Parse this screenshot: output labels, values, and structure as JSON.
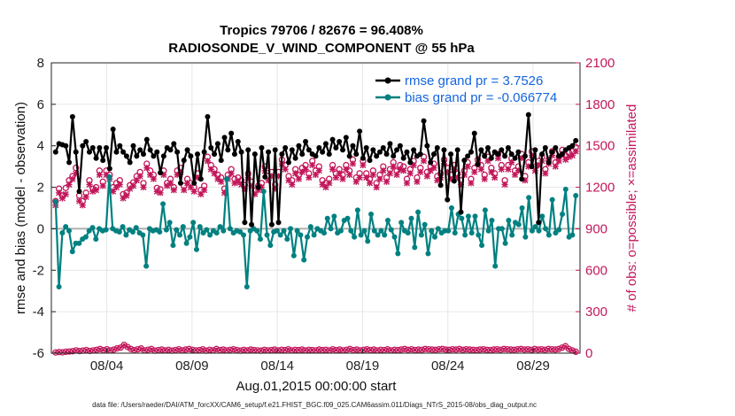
{
  "chart_data": {
    "type": "line",
    "title": "Tropics 79706 / 82676 = 96.408%",
    "subtitle": "RADIOSONDE_V_WIND_COMPONENT @ 55 hPa",
    "xlabel": "Aug.01,2015 00:00:00 start",
    "ylabel": "rmse and bias (model - observation)",
    "ylabel_right": "# of obs: o=possible; ×=assimilated",
    "footer": "data file: /Users/raeder/DAI/ATM_forcXX/CAM6_setup/f.e21.FHIST_BGC.f09_025.CAM6assim.011/Diags_NTrS_2015-08/obs_diag_output.nc",
    "xlim": [
      0.75,
      31.75
    ],
    "ylim": [
      -6,
      8
    ],
    "ylim_right": [
      0,
      2100
    ],
    "yticks": [
      -6,
      -4,
      -2,
      0,
      2,
      4,
      6,
      8
    ],
    "yticks_right": [
      0,
      300,
      600,
      900,
      1200,
      1500,
      1800,
      2100
    ],
    "xtick_values": [
      4,
      9,
      14,
      19,
      24,
      29
    ],
    "xtick_labels": [
      "08/04",
      "08/09",
      "08/14",
      "08/19",
      "08/24",
      "08/29"
    ],
    "zero_line": 0,
    "colors": {
      "rmse": "#000000",
      "bias": "#008080",
      "obs": "#c2185b",
      "legend_text": "#1565e0",
      "zero_line": "#b0b0b0"
    },
    "series": [
      {
        "name": "rmse grand pr = 3.7526",
        "values": [
          3.7,
          4.1,
          4.05,
          4.0,
          3.2,
          5.4,
          3.7,
          1.8,
          4.0,
          4.2,
          3.7,
          3.9,
          3.4,
          3.9,
          3.3,
          3.9,
          2.9,
          4.8,
          3.7,
          4.0,
          3.7,
          3.5,
          3.2,
          4.0,
          3.5,
          3.8,
          3.6,
          4.3,
          3.8,
          3.5,
          3.7,
          2.7,
          3.5,
          3.9,
          3.8,
          4.1,
          3.7,
          2.2,
          3.3,
          3.8,
          3.5,
          2.2,
          3.6,
          2.4,
          3.7,
          5.4,
          3.9,
          3.6,
          4.1,
          3.3,
          4.4,
          3.8,
          4.6,
          3.6,
          4.2,
          3.7,
          0.3,
          3.8,
          0.2,
          3.6,
          2.0,
          3.9,
          2.5,
          3.7,
          0.2,
          3.8,
          0.3,
          3.6,
          3.9,
          3.2,
          3.8,
          3.4,
          4.0,
          3.6,
          4.2,
          3.8,
          3.6,
          3.5,
          3.9,
          3.7,
          4.1,
          3.6,
          4.3,
          3.9,
          4.2,
          3.8,
          4.4,
          3.5,
          4.0,
          3.6,
          4.7,
          3.4,
          3.9,
          3.3,
          3.8,
          3.5,
          3.7,
          3.9,
          3.6,
          4.1,
          3.5,
          3.8,
          4.0,
          3.4,
          3.7,
          3.2,
          3.8,
          3.5,
          3.6,
          5.2,
          4.0,
          3.2,
          3.6,
          3.9,
          2.1,
          3.8,
          1.4,
          3.6,
          2.3,
          3.8,
          0.8,
          3.3,
          3.5,
          3.7,
          4.6,
          3.1,
          3.8,
          3.5,
          3.9,
          3.4,
          3.7,
          3.6,
          3.8,
          3.5,
          3.9,
          3.6,
          3.4,
          3.7,
          2.4,
          3.5,
          5.5,
          3.0,
          3.8,
          0.3,
          3.6,
          3.9,
          3.2,
          3.7,
          3.9,
          3.5,
          3.6,
          3.8,
          3.9,
          4.0,
          4.25
        ]
      },
      {
        "name": "bias grand pr = -0.066774",
        "values": [
          1.3,
          -2.8,
          -0.2,
          0.1,
          -0.1,
          -1.1,
          -0.7,
          -0.7,
          -0.5,
          -0.4,
          -0.1,
          0.05,
          -0.5,
          0.0,
          -0.1,
          -0.05,
          2.5,
          0.0,
          -0.1,
          -0.15,
          0.1,
          -0.3,
          -0.05,
          -0.15,
          0.05,
          -0.2,
          -0.3,
          -1.8,
          0.0,
          -0.1,
          -0.05,
          -0.15,
          1.2,
          -0.05,
          0.3,
          -0.8,
          -0.05,
          -0.3,
          0.1,
          -0.7,
          -0.4,
          0.3,
          -1.0,
          0.1,
          -0.2,
          -0.05,
          -0.3,
          -0.1,
          -0.2,
          0.1,
          -0.1,
          2.4,
          0.0,
          -0.2,
          -0.1,
          -0.15,
          -0.3,
          -2.8,
          -0.1,
          0.0,
          -0.1,
          -0.5,
          1.8,
          -0.3,
          -0.8,
          -0.15,
          -0.1,
          -0.3,
          -0.1,
          -0.5,
          0.0,
          -1.3,
          -0.1,
          -0.3,
          -1.5,
          -0.4,
          0.1,
          -0.3,
          0.0,
          -0.1,
          -0.2,
          0.5,
          0.0,
          0.6,
          -0.2,
          -0.1,
          0.4,
          0.5,
          -0.1,
          -0.4,
          0.9,
          -0.3,
          -0.1,
          -0.6,
          0.7,
          -0.1,
          -0.3,
          -0.1,
          -0.3,
          0.4,
          -0.05,
          -0.4,
          -1.2,
          0.3,
          -0.1,
          -0.2,
          0.5,
          -0.9,
          0.8,
          -0.3,
          0.2,
          -1.2,
          -0.1,
          -0.4,
          0.0,
          -0.2,
          -0.1,
          -0.1,
          1.0,
          -0.2,
          0.7,
          0.5,
          -0.3,
          0.6,
          -0.2,
          0.6,
          -0.3,
          -0.8,
          0.9,
          -0.1,
          0.4,
          -1.8,
          0.0,
          0.0,
          -0.7,
          0.4,
          -0.3,
          0.3,
          0.2,
          1.0,
          -0.4,
          1.5,
          -0.1,
          0.1,
          -0.1,
          0.6,
          0.0,
          -0.3,
          1.4,
          -0.2,
          -0.05,
          0.7,
          1.9,
          -0.4,
          -0.3,
          1.6
        ]
      }
    ],
    "obs_possible": [
      1100,
      1190,
      1140,
      1195,
      1250,
      1280,
      1340,
      1140,
      1100,
      1160,
      1250,
      1190,
      1200,
      1320,
      1240,
      1320,
      1290,
      1200,
      1230,
      1250,
      1150,
      1160,
      1215,
      1235,
      1280,
      1310,
      1230,
      1370,
      1320,
      1290,
      1195,
      1185,
      1320,
      1230,
      1260,
      1200,
      1320,
      1340,
      1210,
      1260,
      1230,
      1200,
      1300,
      1180,
      1210,
      1420,
      1360,
      1330,
      1290,
      1270,
      1190,
      1290,
      1330,
      1260,
      1270,
      1250,
      1215,
      1300,
      1240,
      1175,
      1210,
      1230,
      1350,
      1280,
      1310,
      1220,
      1310,
      1400,
      1360,
      1280,
      1250,
      1330,
      1290,
      1340,
      1360,
      1300,
      1390,
      1320,
      1350,
      1250,
      1230,
      1260,
      1360,
      1300,
      1330,
      1290,
      1360,
      1320,
      1400,
      1270,
      1300,
      1390,
      1300,
      1260,
      1320,
      1230,
      1290,
      1350,
      1270,
      1330,
      1380,
      1320,
      1360,
      1350,
      1260,
      1330,
      1390,
      1270,
      1340,
      1420,
      1310,
      1350,
      1370,
      1280,
      1300,
      1400,
      1340,
      1290,
      1360,
      1300,
      1250,
      1320,
      1380,
      1260,
      1340,
      1400,
      1360,
      1290,
      1420,
      1340,
      1300,
      1440,
      1360,
      1250,
      1360,
      1410,
      1320,
      1350,
      1440,
      1280,
      1380,
      1460,
      1350,
      1390,
      1420,
      1330,
      1400,
      1460,
      1380,
      1420,
      1470,
      1430,
      1450,
      1460,
      1490
    ],
    "obs_assimilated": [
      1070,
      1160,
      1120,
      1150,
      1220,
      1260,
      1300,
      1100,
      1070,
      1130,
      1220,
      1170,
      1180,
      1290,
      1210,
      1290,
      1260,
      1170,
      1200,
      1220,
      1120,
      1140,
      1190,
      1210,
      1250,
      1280,
      1200,
      1340,
      1290,
      1260,
      1170,
      1160,
      1290,
      1210,
      1230,
      1180,
      1290,
      1310,
      1180,
      1230,
      1200,
      1170,
      1270,
      1150,
      1180,
      1390,
      1330,
      1300,
      1260,
      1240,
      1160,
      1260,
      1300,
      1230,
      1240,
      1220,
      1190,
      1270,
      1210,
      1150,
      1180,
      1200,
      1320,
      1250,
      1280,
      1190,
      1280,
      1370,
      1330,
      1250,
      1220,
      1300,
      1260,
      1310,
      1330,
      1270,
      1360,
      1290,
      1320,
      1220,
      1200,
      1230,
      1330,
      1270,
      1300,
      1260,
      1330,
      1290,
      1370,
      1240,
      1270,
      1360,
      1270,
      1230,
      1290,
      1200,
      1260,
      1320,
      1240,
      1300,
      1350,
      1290,
      1330,
      1320,
      1230,
      1300,
      1360,
      1240,
      1310,
      1390,
      1280,
      1320,
      1340,
      1250,
      1270,
      1370,
      1310,
      1260,
      1330,
      1270,
      1220,
      1290,
      1350,
      1230,
      1310,
      1370,
      1330,
      1260,
      1390,
      1310,
      1270,
      1410,
      1330,
      1220,
      1330,
      1380,
      1290,
      1320,
      1410,
      1250,
      1350,
      1430,
      1320,
      1360,
      1390,
      1300,
      1370,
      1430,
      1350,
      1390,
      1440,
      1400,
      1420,
      1430,
      1460
    ],
    "obs_count_bottom": [
      5,
      8,
      6,
      10,
      12,
      14,
      20,
      15,
      18,
      22,
      16,
      20,
      24,
      30,
      22,
      28,
      20,
      26,
      35,
      40,
      60,
      45,
      30,
      22,
      28,
      34,
      20,
      25,
      30,
      18,
      22,
      26,
      20,
      24,
      18,
      22,
      28,
      20,
      26,
      30,
      24,
      20,
      22,
      28,
      18,
      24,
      20,
      30,
      22,
      26,
      20,
      24,
      28,
      22,
      18,
      24,
      20,
      26,
      22,
      20,
      18,
      24,
      20,
      22,
      26,
      20,
      24,
      22,
      28,
      20,
      24,
      22,
      26,
      20,
      24,
      22,
      20,
      26,
      22,
      24,
      20,
      28,
      22,
      26,
      20,
      24,
      30,
      22,
      26,
      20,
      24,
      28,
      22,
      26,
      20,
      24,
      22,
      28,
      20,
      24,
      22,
      26,
      30,
      24,
      28,
      22,
      26,
      24,
      30,
      28,
      26,
      24,
      28,
      30,
      26,
      24,
      28,
      26,
      30,
      24,
      28,
      26,
      24,
      22,
      26,
      28,
      24,
      22,
      26,
      28,
      24,
      30,
      28,
      26,
      24,
      28,
      30,
      26,
      28,
      24,
      30,
      26,
      28,
      24,
      30,
      28,
      26,
      30,
      40,
      50,
      30,
      20,
      10
    ]
  }
}
